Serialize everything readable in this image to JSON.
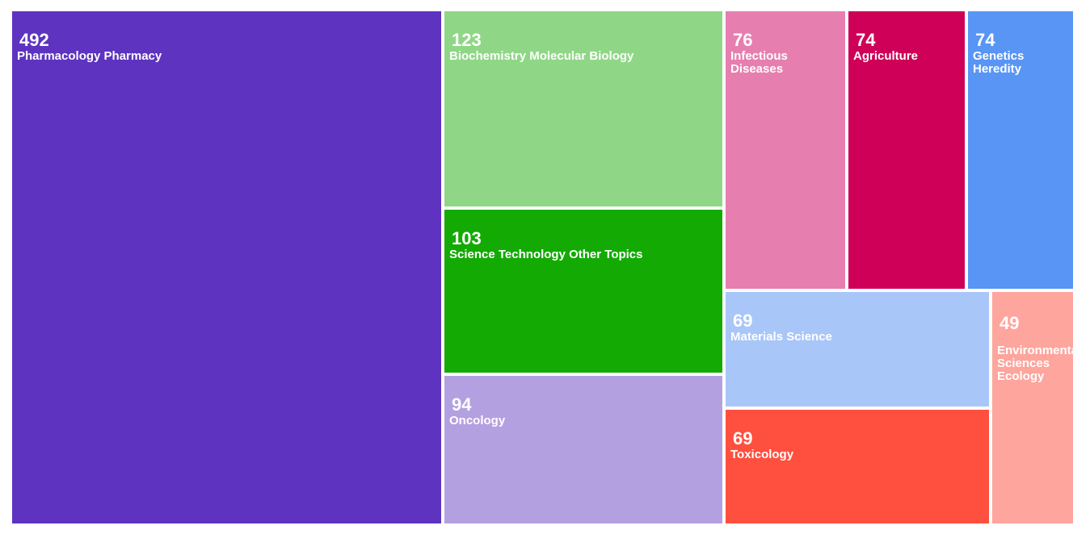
{
  "chart_data": {
    "type": "treemap",
    "title": "",
    "nodes": [
      {
        "label": "Pharmacology Pharmacy",
        "value": 492,
        "color": "#5d33c0"
      },
      {
        "label": "Biochemistry Molecular Biology",
        "value": 123,
        "color": "#8fd786"
      },
      {
        "label": "Science Technology Other Topics",
        "value": 103,
        "color": "#13aa04"
      },
      {
        "label": "Oncology",
        "value": 94,
        "color": "#b3a0e0"
      },
      {
        "label": "Infectious\nDiseases",
        "value": 76,
        "color": "#e67faf"
      },
      {
        "label": "Agriculture",
        "value": 74,
        "color": "#cf0058"
      },
      {
        "label": "Genetics Heredity",
        "value": 74,
        "color": "#5895f5"
      },
      {
        "label": "Materials Science",
        "value": 69,
        "color": "#a9c6f8"
      },
      {
        "label": "Toxicology",
        "value": 69,
        "color": "#ff4f3e"
      },
      {
        "label": "Environmental\nSciences\nEcology",
        "value": 49,
        "color": "#fea59d"
      }
    ]
  }
}
